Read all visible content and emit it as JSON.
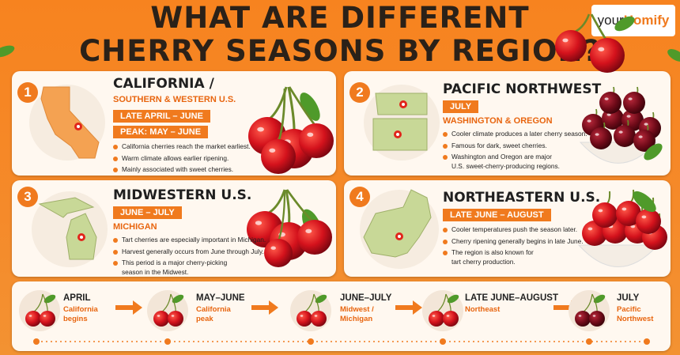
{
  "header": {
    "title_lines": [
      "WHAT ARE DIFFERENT",
      "CHERRY SEASONS BY REGION?"
    ],
    "logo": [
      "your",
      "Homify"
    ]
  },
  "regions": [
    {
      "number": "1",
      "title": "CALIFORNIA /",
      "subtitle": "SOUTHERN & WESTERN U.S.",
      "season": "LATE APRIL – JUNE",
      "peak": "PEAK: MAY – JUNE",
      "bullets": [
        [
          "California cherries reach the market earliest."
        ],
        [
          "Warm climate allows earlier ripening."
        ],
        [
          "Mainly associated with sweet cherries."
        ]
      ]
    },
    {
      "number": "2",
      "title": "PACIFIC NORTHWEST",
      "season": "JULY",
      "states": "WASHINGTON & OREGON",
      "bullets": [
        [
          "Cooler climate produces a later cherry season."
        ],
        [
          "Famous for dark, sweet cherries."
        ],
        [
          "Washington and Oregon are major",
          "U.S. sweet-cherry-producing regions."
        ]
      ]
    },
    {
      "number": "3",
      "title": "MIDWESTERN U.S.",
      "season": "JUNE – JULY",
      "states": "MICHIGAN",
      "bullets": [
        [
          "Tart cherries are especially important in Michigan."
        ],
        [
          "Harvest generally occurs from June through July."
        ],
        [
          "This period is a major cherry-picking",
          "season in the Midwest."
        ]
      ]
    },
    {
      "number": "4",
      "title": "NORTHEASTERN U.S.",
      "season": "LATE JUNE – AUGUST",
      "bullets": [
        [
          "Cooler temperatures push the season later."
        ],
        [
          "Cherry ripening generally begins in late June."
        ],
        [
          "The region is also known for",
          "tart cherry production."
        ]
      ]
    }
  ],
  "timeline": [
    {
      "label": "APRIL",
      "note": [
        "California",
        "begins"
      ]
    },
    {
      "label": "MAY–JUNE",
      "note": [
        "California",
        "peak"
      ]
    },
    {
      "label": "JUNE–JULY",
      "note": [
        "Midwest /",
        "Michigan"
      ]
    },
    {
      "label": "LATE JUNE–AUGUST",
      "note": [
        "Northeast"
      ]
    },
    {
      "label": "JULY",
      "note": [
        "Pacific",
        "Northwest"
      ]
    }
  ]
}
